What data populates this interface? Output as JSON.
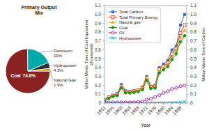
{
  "chart_data": [
    {
      "type": "line",
      "x": [
        1952,
        1954,
        1956,
        1958,
        1960,
        1962,
        1964,
        1966,
        1968,
        1970,
        1972,
        1974,
        1976,
        1978,
        1980,
        1982,
        1984,
        1986,
        1988,
        1990
      ],
      "xlim": [
        1952,
        1991
      ],
      "xticks": [
        1952,
        1956,
        1960,
        1964,
        1968,
        1972,
        1976,
        1980,
        1984,
        1988
      ],
      "xlabel": "Year",
      "ylabel": "Million Metric Tons of Coal Equivalent\n(thousands)",
      "y2label": "Million Metric Tons of Carbon",
      "ylim": [
        0,
        1.1
      ],
      "yticks": [
        0,
        0.1,
        0.2,
        0.3,
        0.4,
        0.5,
        0.6,
        0.7,
        0.8,
        0.9,
        {
          "value": 1.0,
          "label": "1.0"
        },
        1.1
      ],
      "y2lim": [
        0,
        1.1
      ],
      "y2ticks": [
        0,
        0.1,
        0.2,
        0.3,
        0.4,
        0.5,
        0.6,
        0.7,
        0.8,
        0.9,
        {
          "value": 1.0,
          "label": "1.0"
        },
        1.1
      ],
      "grid": false,
      "legend": "upper left",
      "series": [
        {
          "name": "Total Carbon",
          "marker": "square",
          "values": [
            0.04,
            0.07,
            0.09,
            0.11,
            0.21,
            0.14,
            0.13,
            0.14,
            0.15,
            0.18,
            0.3,
            0.19,
            0.2,
            0.4,
            0.44,
            0.48,
            0.6,
            0.64,
            0.88,
            1.0
          ]
        },
        {
          "name": "Total Primary Energy",
          "marker": "open-square",
          "values": [
            0.035,
            0.065,
            0.085,
            0.1,
            0.19,
            0.13,
            0.125,
            0.135,
            0.145,
            0.17,
            0.285,
            0.185,
            0.19,
            0.38,
            0.415,
            0.455,
            0.555,
            0.615,
            0.79,
            0.88
          ]
        },
        {
          "name": "Natural gas",
          "marker": "triangle",
          "values": [
            0.03,
            0.06,
            0.08,
            0.09,
            0.18,
            0.125,
            0.12,
            0.13,
            0.14,
            0.165,
            0.27,
            0.175,
            0.18,
            0.36,
            0.395,
            0.435,
            0.52,
            0.585,
            0.74,
            0.82
          ]
        },
        {
          "name": "Coal",
          "marker": "pentagon",
          "values": [
            0.025,
            0.055,
            0.075,
            0.085,
            0.17,
            0.115,
            0.115,
            0.12,
            0.13,
            0.15,
            0.255,
            0.165,
            0.17,
            0.34,
            0.375,
            0.41,
            0.49,
            0.555,
            0.69,
            0.76
          ]
        },
        {
          "name": "Oil",
          "marker": "open-circle",
          "values": [
            0.005,
            0.01,
            0.01,
            0.01,
            0.01,
            0.01,
            0.01,
            0.01,
            0.015,
            0.02,
            0.04,
            0.05,
            0.07,
            0.09,
            0.115,
            0.135,
            0.16,
            0.17,
            0.19,
            0.2
          ]
        },
        {
          "name": "Hydropower",
          "marker": "x",
          "values": [
            0.002,
            0.002,
            0.002,
            0.002,
            0.003,
            0.003,
            0.003,
            0.003,
            0.003,
            0.003,
            0.003,
            0.003,
            0.003,
            0.004,
            0.005,
            0.005,
            0.006,
            0.007,
            0.01,
            0.015
          ]
        }
      ]
    },
    {
      "type": "pie",
      "title": "Primary Output\nMix",
      "categories": [
        "Coal",
        "Petroleum",
        "Hydropower",
        "Natural Gas"
      ],
      "values": [
        74.8,
        19.0,
        4.3,
        1.9
      ],
      "value_labels": [
        "74.8%",
        "19%",
        "4.3%",
        "1.9%"
      ],
      "colors": [
        "#8B2222",
        "#00AAAA",
        "#2F2F2F",
        "#C8A000"
      ],
      "data_labels": true
    }
  ]
}
